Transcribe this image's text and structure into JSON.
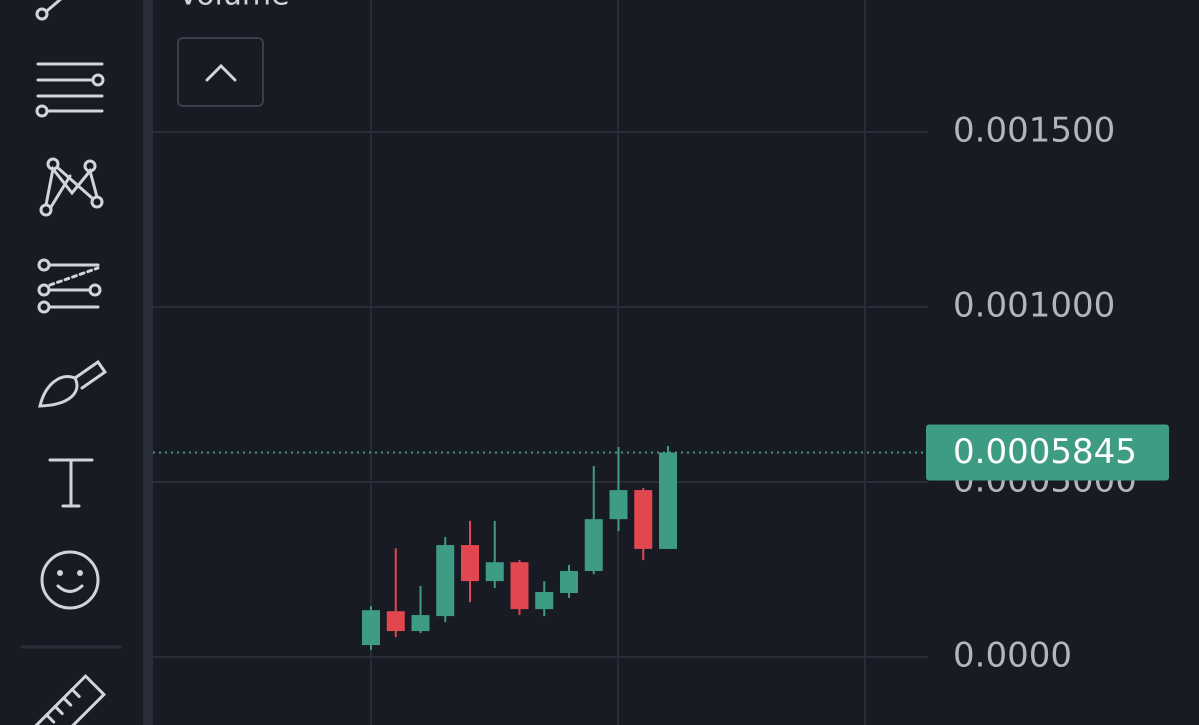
{
  "chart_data": {
    "type": "candlestick",
    "panel_label": "Volume",
    "categories": [
      null,
      null,
      null,
      null,
      null,
      null,
      null,
      null,
      null,
      null,
      null,
      null,
      null
    ],
    "open": [
      3.43e-05,
      0.000131,
      7.43e-05,
      0.000117,
      0.00032,
      0.000217,
      0.000271,
      0.000137,
      0.000183,
      0.000246,
      0.000394,
      0.000477,
      0.000309
    ],
    "high": [
      0.000146,
      0.000311,
      0.000203,
      0.000343,
      0.000389,
      0.000389,
      0.000277,
      0.000217,
      0.000263,
      0.000546,
      0.0006,
      0.000483,
      0.000603
    ],
    "low": [
      2e-05,
      5.71e-05,
      6.86e-05,
      0.0001,
      0.000157,
      0.000197,
      0.00012,
      0.000117,
      0.000169,
      0.000237,
      0.00036,
      0.000277,
      0.000309
    ],
    "close": [
      0.000134,
      7.43e-05,
      0.00012,
      0.00032,
      0.000217,
      0.000271,
      0.000137,
      0.000186,
      0.000246,
      0.000394,
      0.000477,
      0.000309,
      0.0005845
    ],
    "up_color": "#3f9c84",
    "down_color": "#e0474f",
    "last_price": 0.0005845,
    "last_price_color": "#3f9c84",
    "ylim": [
      -0.000194,
      0.001877
    ],
    "yticks": [
      {
        "value": 0,
        "label": "0.0000"
      },
      {
        "value": 0.0005,
        "label": "0.0005000"
      },
      {
        "value": 0.001,
        "label": "0.001000"
      },
      {
        "value": 0.0015,
        "label": "0.001500"
      }
    ],
    "grid": true
  }
}
